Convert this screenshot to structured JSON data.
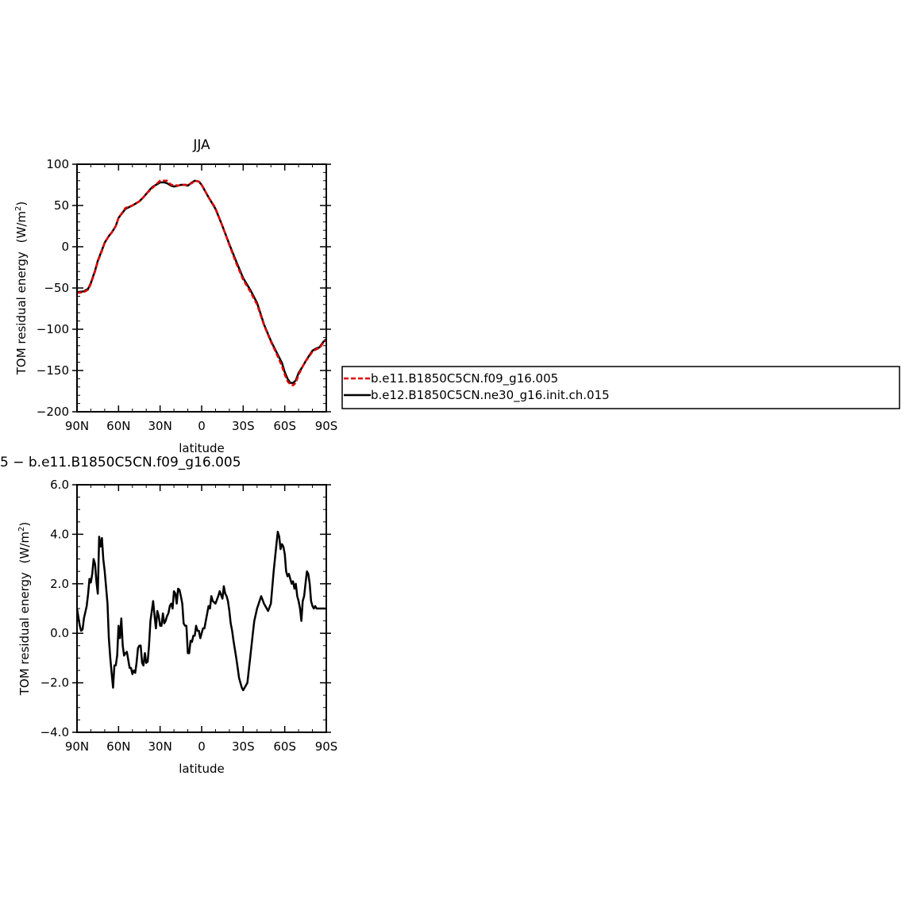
{
  "chart_data": [
    {
      "type": "line",
      "title": "JJA",
      "xlabel": "latitude",
      "ylabel": "TOM residual energy",
      "ylabel_unit": "(W/m",
      "ylabel_sup": "2",
      "ylabel_close": ")",
      "xlim": [
        90,
        -90
      ],
      "ylim": [
        -200,
        100
      ],
      "x_ticks": [
        90,
        60,
        30,
        0,
        -30,
        -60,
        -90
      ],
      "x_tick_labels": [
        "90N",
        "60N",
        "30N",
        "0",
        "30S",
        "60S",
        "90S"
      ],
      "y_ticks": [
        100,
        50,
        0,
        -50,
        -100,
        -150,
        -200
      ],
      "y_tick_labels": [
        "100",
        "50",
        "0",
        "−50",
        "−100",
        "−150",
        "−200"
      ],
      "legend": {
        "placement": "right",
        "entries": [
          {
            "name": "b.e11.B1850C5CN.f09_g16.005",
            "color": "#e00000",
            "dash": "dashed"
          },
          {
            "name": "b.e12.B1850C5CN.ne30_g16.init.ch.015",
            "color": "#000000",
            "dash": "solid"
          }
        ]
      },
      "x": [
        90,
        85,
        82,
        80,
        77,
        75,
        72,
        70,
        67,
        65,
        62,
        60,
        55,
        50,
        45,
        42,
        40,
        37,
        35,
        32,
        30,
        27,
        25,
        22,
        20,
        17,
        15,
        12,
        10,
        7,
        5,
        2,
        0,
        -5,
        -10,
        -15,
        -20,
        -25,
        -30,
        -35,
        -40,
        -45,
        -50,
        -55,
        -58,
        -60,
        -62,
        -64,
        -66,
        -68,
        -70,
        -73,
        -75,
        -78,
        -80,
        -83,
        -85,
        -88,
        -90
      ],
      "series": [
        {
          "name": "b.e11.B1850C5CN.f09_g16.005",
          "color": "#e00000",
          "values": [
            -56,
            -55,
            -52,
            -45,
            -30,
            -18,
            -5,
            5,
            13,
            17,
            25,
            35,
            47,
            50,
            55,
            60,
            64,
            69,
            72,
            77,
            80,
            80,
            80,
            75,
            75,
            74,
            75,
            75,
            75,
            77,
            80,
            79,
            75,
            60,
            47,
            25,
            2,
            -20,
            -40,
            -54,
            -70,
            -95,
            -115,
            -133,
            -145,
            -155,
            -163,
            -167,
            -168,
            -165,
            -155,
            -145,
            -139,
            -132,
            -127,
            -124,
            -123,
            -116,
            -113
          ]
        },
        {
          "name": "b.e12.B1850C5CN.ne30_g16.init.ch.015",
          "color": "#000000",
          "values": [
            -55,
            -54,
            -51,
            -44,
            -29,
            -17,
            -4,
            5,
            13,
            17,
            25,
            35,
            46,
            50,
            55,
            60,
            64,
            70,
            73,
            76,
            78,
            78,
            77,
            74,
            73,
            74,
            75,
            75,
            74,
            78,
            80,
            79,
            75,
            60,
            46,
            25,
            3,
            -18,
            -38,
            -52,
            -68,
            -94,
            -114,
            -131,
            -141,
            -152,
            -160,
            -165,
            -165,
            -162,
            -153,
            -145,
            -139,
            -131,
            -126,
            -123,
            -122,
            -115,
            -112
          ]
        }
      ]
    },
    {
      "type": "line",
      "title": "5 − b.e11.B1850C5CN.f09_g16.005",
      "xlabel": "latitude",
      "ylabel": "TOM residual energy",
      "ylabel_unit": "(W/m",
      "ylabel_sup": "2",
      "ylabel_close": ")",
      "xlim": [
        90,
        -90
      ],
      "ylim": [
        -4,
        6
      ],
      "x_ticks": [
        90,
        60,
        30,
        0,
        -30,
        -60,
        -90
      ],
      "x_tick_labels": [
        "90N",
        "60N",
        "30N",
        "0",
        "30S",
        "60S",
        "90S"
      ],
      "y_ticks": [
        6,
        4,
        2,
        0,
        -2,
        -4
      ],
      "y_tick_labels": [
        "6.0",
        "4.0",
        "2.0",
        "0.0",
        "−2.0",
        "−4.0"
      ],
      "x": [
        90,
        88,
        87,
        86,
        85,
        83,
        82,
        81,
        80,
        79,
        78,
        77,
        76,
        75,
        74,
        73,
        72,
        71,
        70,
        68,
        67,
        66,
        65,
        64,
        63,
        62,
        61,
        60,
        59,
        58,
        57,
        56,
        55,
        54,
        52,
        51,
        50,
        49,
        48,
        47,
        46,
        45,
        44,
        43,
        42,
        41,
        40,
        39,
        38,
        37,
        35,
        34,
        33,
        32,
        31,
        30,
        29,
        28,
        27,
        26,
        25,
        24,
        23,
        22,
        21,
        20,
        19,
        18,
        17,
        16,
        15,
        14,
        13,
        12,
        11,
        10,
        9,
        8,
        7,
        6,
        5,
        4,
        3,
        2,
        1,
        0,
        -1,
        -2,
        -3,
        -4,
        -5,
        -6,
        -7,
        -8,
        -10,
        -12,
        -13,
        -15,
        -16,
        -17,
        -18,
        -19,
        -20,
        -21,
        -22,
        -23,
        -25,
        -26,
        -27,
        -28,
        -29,
        -30,
        -33,
        -35,
        -37,
        -38,
        -40,
        -43,
        -45,
        -48,
        -50,
        -52,
        -54,
        -55,
        -56,
        -57,
        -58,
        -59,
        -60,
        -61,
        -62,
        -63,
        -64,
        -65,
        -66,
        -67,
        -68,
        -69,
        -70,
        -71,
        -72,
        -73,
        -74,
        -75,
        -76,
        -77,
        -78,
        -79,
        -80,
        -81,
        -82,
        -83,
        -84,
        -85,
        -86,
        -87,
        -88,
        -89,
        -90
      ],
      "series": [
        {
          "name": "",
          "color": "#000000",
          "values": [
            1.0,
            0.3,
            0.1,
            0.15,
            0.6,
            1.1,
            1.6,
            2.2,
            2.05,
            2.4,
            3.0,
            2.8,
            2.1,
            1.6,
            3.9,
            3.5,
            3.85,
            3.0,
            2.5,
            1.2,
            -0.2,
            -1.0,
            -1.6,
            -2.2,
            -1.3,
            -1.3,
            -0.9,
            0.3,
            -0.2,
            0.6,
            -0.5,
            -0.9,
            -0.8,
            -0.75,
            -1.4,
            -1.4,
            -1.65,
            -1.5,
            -1.6,
            -1.2,
            -0.6,
            -0.5,
            -0.5,
            -1.2,
            -1.3,
            -0.8,
            -1.2,
            -1.15,
            -0.5,
            0.5,
            1.3,
            0.7,
            0.2,
            0.9,
            0.7,
            0.3,
            0.3,
            0.8,
            0.4,
            0.5,
            0.7,
            0.8,
            1.1,
            1.2,
            1.0,
            1.7,
            1.6,
            1.2,
            1.8,
            1.75,
            1.5,
            1.2,
            0.4,
            0.3,
            0.3,
            -0.8,
            -0.8,
            -0.3,
            -0.35,
            -0.1,
            -0.1,
            0.3,
            0.1,
            0.1,
            -0.2,
            0.0,
            0.2,
            0.2,
            0.5,
            0.8,
            1.1,
            1.0,
            1.5,
            1.3,
            1.2,
            1.5,
            1.7,
            1.4,
            1.9,
            1.6,
            1.5,
            1.3,
            0.9,
            0.4,
            0.1,
            -0.3,
            -1.0,
            -1.4,
            -1.8,
            -2.0,
            -2.2,
            -2.3,
            -2.0,
            -1.0,
            0.0,
            0.5,
            1.0,
            1.5,
            1.2,
            0.9,
            1.2,
            2.5,
            3.6,
            4.1,
            3.9,
            3.4,
            3.6,
            3.5,
            3.2,
            2.5,
            2.3,
            2.4,
            2.2,
            2.0,
            2.1,
            1.8,
            2.0,
            1.5,
            1.3,
            1.0,
            0.5,
            1.3,
            1.5,
            2.0,
            2.5,
            2.4,
            2.0,
            1.3,
            1.1,
            1.0,
            1.1,
            1.0,
            1.0,
            1.0,
            1.0,
            1.0,
            1.0,
            1.0,
            1.0
          ]
        }
      ]
    }
  ]
}
